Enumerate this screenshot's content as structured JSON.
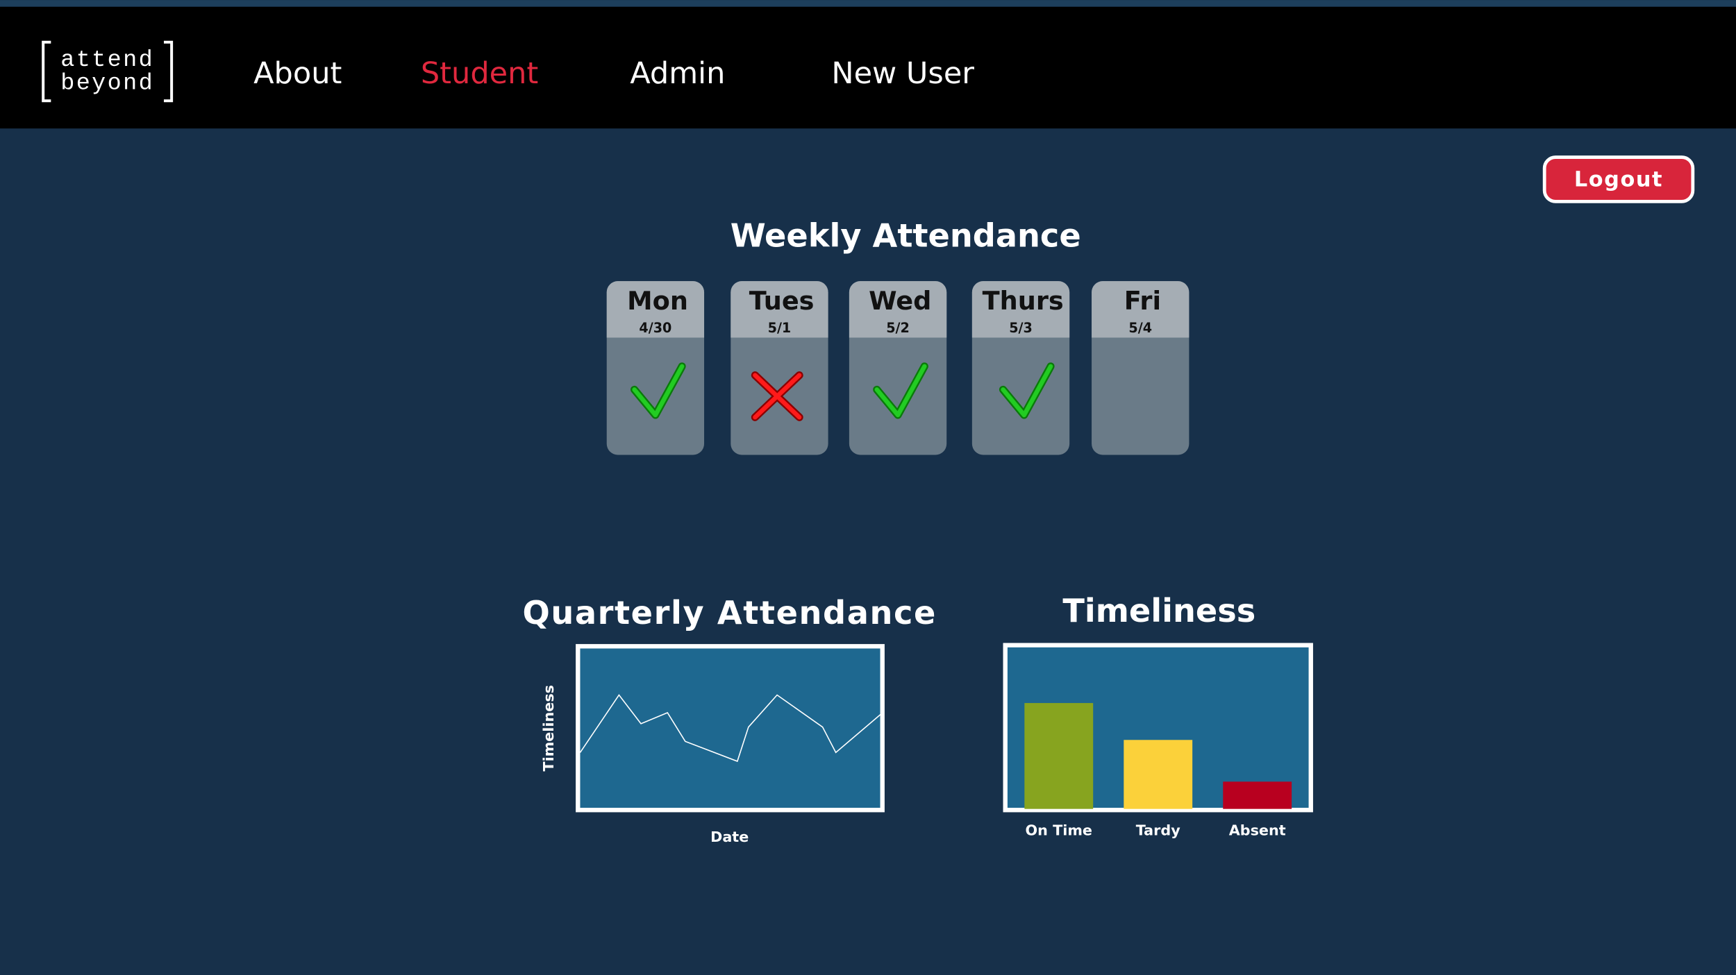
{
  "nav": {
    "logo": [
      "attend",
      "beyond"
    ],
    "links": [
      "About",
      "Student",
      "Admin",
      "New User"
    ]
  },
  "logout": "Logout",
  "weekly": {
    "title": "Weekly Attendance",
    "days": [
      {
        "name": "Mon",
        "date": "4/30"
      },
      {
        "name": "Tues",
        "date": "5/1"
      },
      {
        "name": "Wed",
        "date": "5/2"
      },
      {
        "name": "Thurs",
        "date": "5/3"
      },
      {
        "name": "Fri",
        "date": "5/4"
      }
    ]
  },
  "chart_data": [
    {
      "type": "line",
      "title": "Quarterly Attendance",
      "x_label": "Date",
      "y_label": "Timeliness",
      "x": [
        0,
        12.9,
        20.2,
        29.0,
        34.9,
        52.2,
        55.9,
        65.4,
        80.5,
        84.9,
        100
      ],
      "values": [
        34.7,
        70.8,
        52.8,
        59.7,
        41.7,
        29.2,
        50.7,
        70.8,
        50.7,
        34.7,
        59.0
      ],
      "xlim": [
        0,
        100
      ],
      "ylim": [
        0,
        100
      ],
      "color": "#ffffff"
    },
    {
      "type": "bar",
      "title": "Timeliness",
      "categories": [
        "On Time",
        "Tardy",
        "Absent"
      ],
      "values": [
        66,
        43,
        17
      ],
      "colors": [
        "#87a41f",
        "#fbd13a",
        "#b8001f"
      ],
      "ylim": [
        0,
        100
      ]
    }
  ]
}
